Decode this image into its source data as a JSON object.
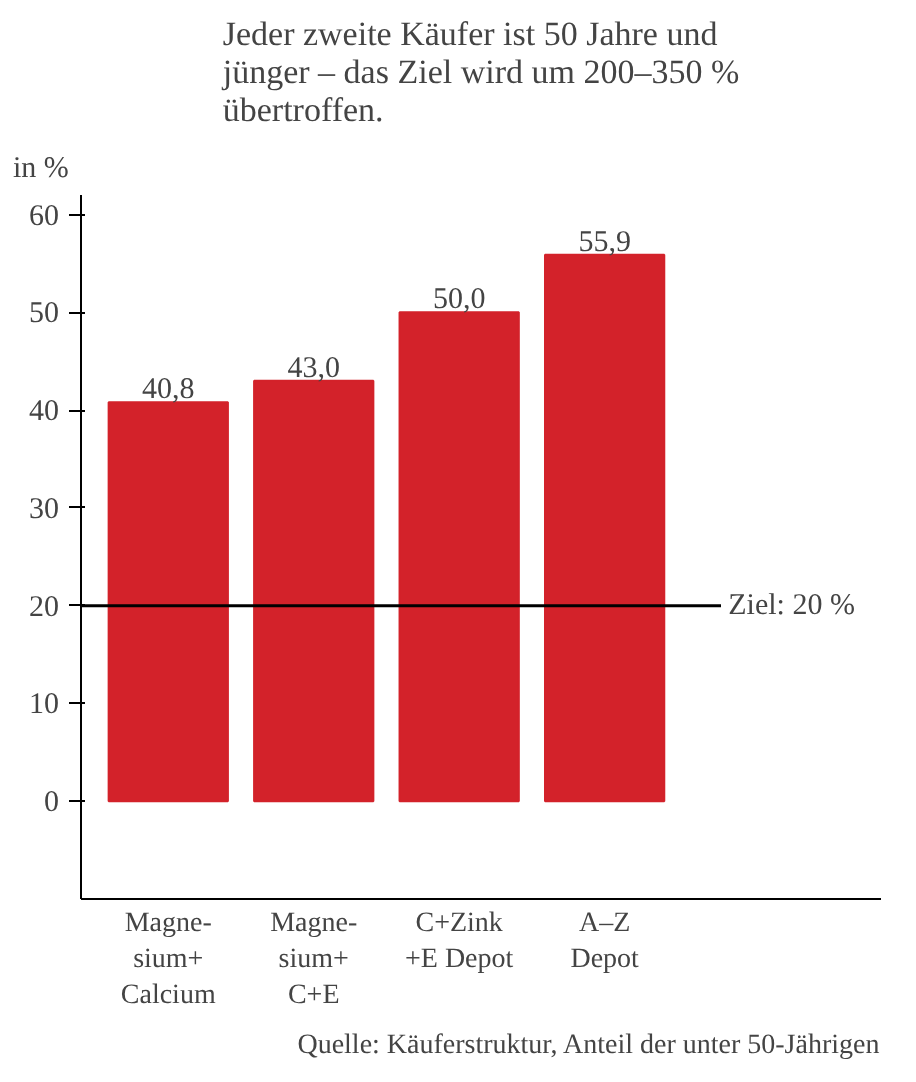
{
  "chart_data": {
    "type": "bar",
    "title": "Jeder zweite Käufer ist 50 Jahre und\njünger – das Ziel wird um 200–350 %\nübertroffen.",
    "ylabel": "in %",
    "categories": [
      "Magne-\nsium+\nCalcium",
      "Magne-\nsium+\nC+E",
      "C+Zink\n+E Depot",
      "A–Z\nDepot"
    ],
    "values": [
      40.8,
      43.0,
      50.0,
      55.9
    ],
    "color": "#d3222a",
    "value_labels": [
      "40,8",
      "43,0",
      "50,0",
      "55,9"
    ],
    "ylim": [
      -10,
      62
    ],
    "yticks": [
      0,
      10,
      20,
      30,
      40,
      50,
      60
    ],
    "grid": false,
    "ref_lines": [
      {
        "axis": "y",
        "value": 20,
        "label": "Ziel: 20 %",
        "color": "#000000"
      }
    ],
    "annotations": [
      "Quelle: Käuferstruktur, Anteil der unter 50-Jährigen"
    ]
  }
}
